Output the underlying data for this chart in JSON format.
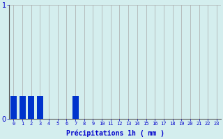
{
  "hours": [
    0,
    1,
    2,
    3,
    4,
    5,
    6,
    7,
    8,
    9,
    10,
    11,
    12,
    13,
    14,
    15,
    16,
    17,
    18,
    19,
    20,
    21,
    22,
    23
  ],
  "values": [
    0.2,
    0.2,
    0.2,
    0.2,
    0,
    0,
    0,
    0.2,
    0,
    0,
    0,
    0,
    0,
    0,
    0,
    0,
    0,
    0,
    0,
    0,
    0,
    0,
    0,
    0
  ],
  "bar_color": "#0033cc",
  "background_color": "#d4eeee",
  "grid_color": "#aaaaaa",
  "xlabel": "Précipitations 1h ( mm )",
  "xlabel_color": "#0000cc",
  "tick_color": "#0000cc",
  "axis_color": "#555555",
  "ylim": [
    0,
    1
  ],
  "xlim": [
    -0.5,
    23.5
  ],
  "yticks": [
    0,
    1
  ],
  "xtick_labels": [
    "0",
    "1",
    "2",
    "3",
    "4",
    "5",
    "6",
    "7",
    "8",
    "9",
    "10",
    "11",
    "12",
    "13",
    "14",
    "15",
    "16",
    "17",
    "18",
    "19",
    "20",
    "21",
    "22",
    "23"
  ]
}
